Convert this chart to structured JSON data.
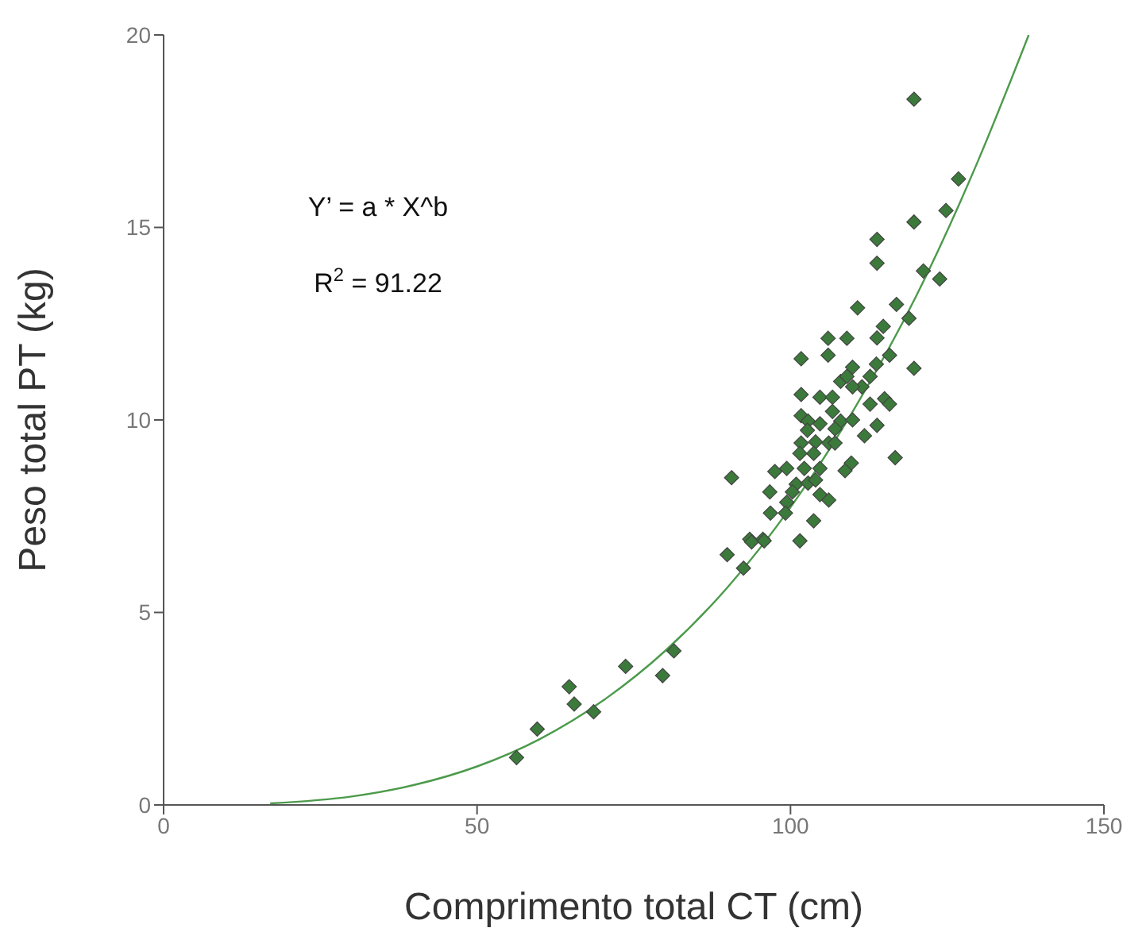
{
  "chart_data": {
    "type": "scatter",
    "xlabel": "Comprimento total CT (cm)",
    "ylabel": "Peso total PT (kg)",
    "xlim": [
      0,
      150
    ],
    "ylim": [
      0,
      20
    ],
    "xticks": [
      0,
      50,
      100,
      150
    ],
    "yticks": [
      0,
      5,
      10,
      15,
      20
    ],
    "grid": false,
    "annotations": [
      "Y’ = a * X^b",
      "R$^{2}$ = 91.22"
    ],
    "series": [
      {
        "marker": "diamond",
        "color": "#3b7a3b",
        "x": [
          56.3,
          59.6,
          64.7,
          65.5,
          68.6,
          73.7,
          79.6,
          81.4,
          89.9,
          92.5,
          93.5,
          95.6,
          119.7,
          126.8,
          124.8,
          119.7,
          113.8,
          113.8,
          121.2,
          123.8,
          110.7,
          116.9,
          118.9,
          114.8,
          106,
          109,
          113.8,
          101.7,
          106,
          115.8,
          113.7,
          119.7,
          109.9,
          108,
          109,
          111.4,
          112.7,
          101.7,
          104.7,
          106.7,
          109.9,
          115,
          112.7,
          115.8,
          101.7,
          102.8,
          106.7,
          108,
          109.9,
          104.7,
          107.1,
          102.7,
          113.8,
          111.8,
          101.7,
          104,
          106.1,
          107.1,
          103.7,
          101.5,
          99.4,
          97.5,
          102.2,
          104.7,
          100.9,
          102.8,
          104,
          90.6,
          96.7,
          100.3,
          109.7,
          108.7,
          116.7,
          104.7,
          106.1,
          99.4,
          96.8,
          99.2,
          103.7,
          93.8,
          95.8,
          101.5
        ],
        "values": [
          1.23,
          1.97,
          3.07,
          2.62,
          2.42,
          3.6,
          3.36,
          4.0,
          6.5,
          6.15,
          6.9,
          6.9,
          18.33,
          16.26,
          15.44,
          15.14,
          14.69,
          14.07,
          13.87,
          13.66,
          12.91,
          13.0,
          12.64,
          12.43,
          12.12,
          12.12,
          12.13,
          11.59,
          11.68,
          11.68,
          11.45,
          11.34,
          11.37,
          11.0,
          11.13,
          10.86,
          11.13,
          10.66,
          10.59,
          10.59,
          10.86,
          10.55,
          10.41,
          10.41,
          10.11,
          9.97,
          10.22,
          9.97,
          10.0,
          9.9,
          9.77,
          9.73,
          9.86,
          9.59,
          9.4,
          9.43,
          9.4,
          9.4,
          9.13,
          9.13,
          8.74,
          8.66,
          8.74,
          8.74,
          8.33,
          8.36,
          8.44,
          8.5,
          8.13,
          8.13,
          8.88,
          8.68,
          9.02,
          8.06,
          7.92,
          7.86,
          7.58,
          7.58,
          7.38,
          6.83,
          6.86,
          6.86
        ]
      },
      {
        "type": "line",
        "marker": "none",
        "color": "#4c9a4c",
        "x": [
          17,
          30,
          40,
          50,
          60,
          70,
          80,
          90,
          100,
          110,
          120,
          130,
          138
        ],
        "values": [
          0.04,
          0.22,
          0.52,
          1.0,
          1.71,
          2.7,
          4.0,
          5.66,
          7.73,
          10.24,
          13.2,
          16.76,
          20.0
        ]
      }
    ]
  }
}
